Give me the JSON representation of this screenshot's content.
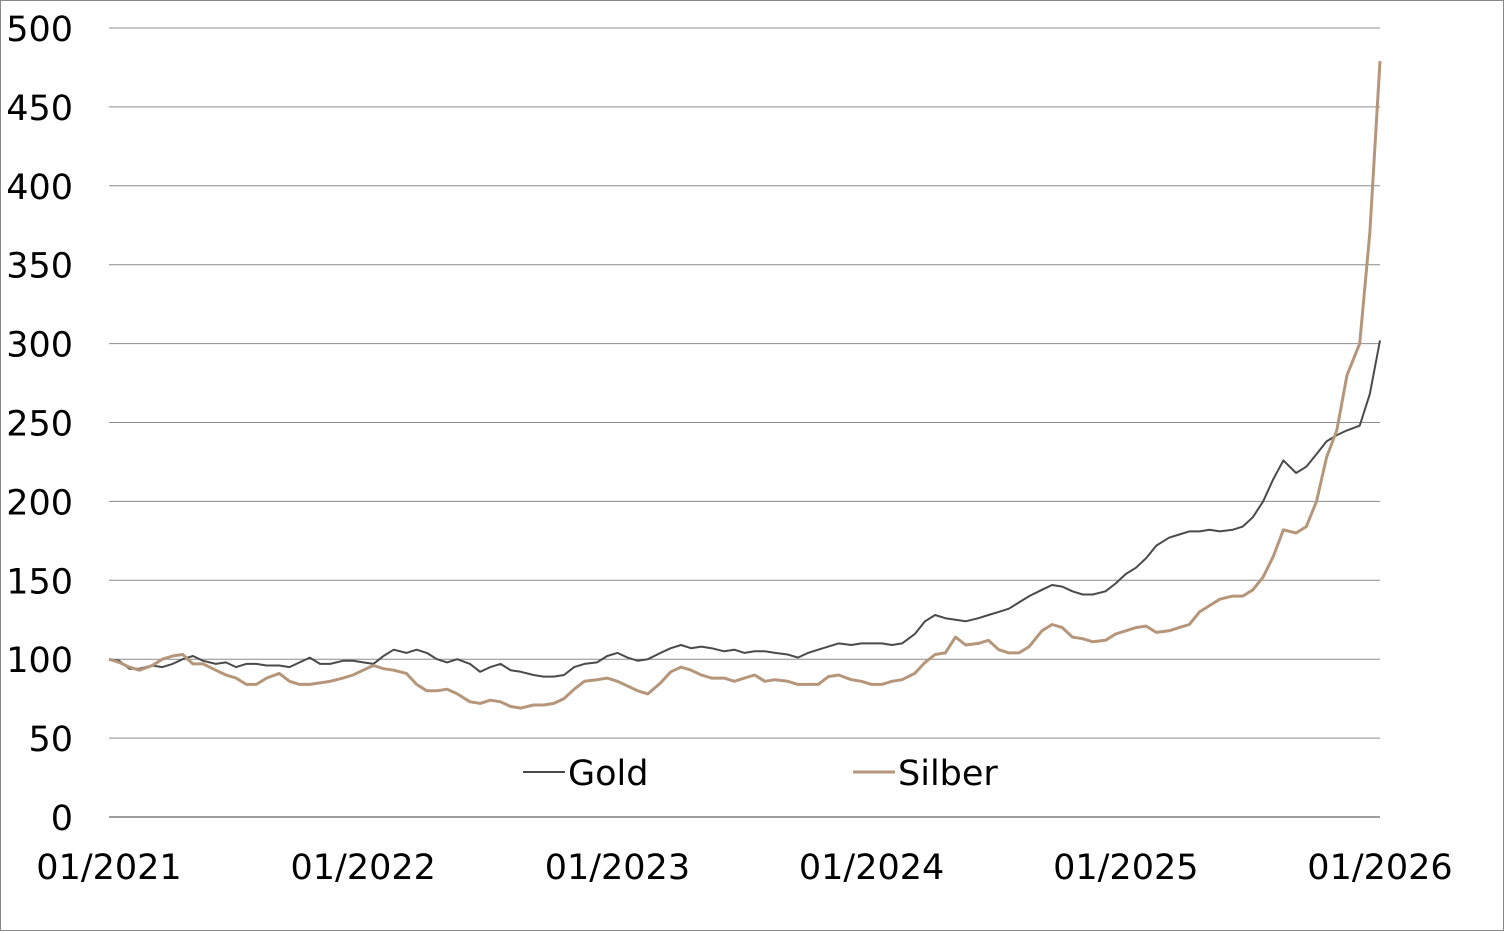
{
  "chart_data": {
    "type": "line",
    "title": "",
    "xlabel": "",
    "ylabel": "",
    "ylim": [
      0,
      500
    ],
    "y_ticks": [
      "0",
      "50",
      "100",
      "150",
      "200",
      "250",
      "300",
      "350",
      "400",
      "450",
      "500"
    ],
    "x_ticks": [
      "01/2021",
      "01/2022",
      "01/2023",
      "01/2024",
      "01/2025",
      "01/2026"
    ],
    "xlim": [
      2021.0,
      2026.0
    ],
    "grid": "horizontal",
    "legend": "bottom-center",
    "series": [
      {
        "name": "Gold",
        "color": "#4a4a4a",
        "points": [
          [
            2021.0,
            100
          ],
          [
            2021.04,
            99
          ],
          [
            2021.08,
            94
          ],
          [
            2021.12,
            94
          ],
          [
            2021.17,
            96
          ],
          [
            2021.21,
            95
          ],
          [
            2021.25,
            97
          ],
          [
            2021.29,
            100
          ],
          [
            2021.33,
            102
          ],
          [
            2021.37,
            99
          ],
          [
            2021.42,
            97
          ],
          [
            2021.46,
            98
          ],
          [
            2021.5,
            95
          ],
          [
            2021.54,
            97
          ],
          [
            2021.58,
            97
          ],
          [
            2021.62,
            96
          ],
          [
            2021.67,
            96
          ],
          [
            2021.71,
            95
          ],
          [
            2021.75,
            98
          ],
          [
            2021.79,
            101
          ],
          [
            2021.83,
            97
          ],
          [
            2021.87,
            97
          ],
          [
            2021.92,
            99
          ],
          [
            2021.96,
            99
          ],
          [
            2022.0,
            98
          ],
          [
            2022.04,
            97
          ],
          [
            2022.08,
            102
          ],
          [
            2022.12,
            106
          ],
          [
            2022.17,
            104
          ],
          [
            2022.21,
            106
          ],
          [
            2022.25,
            104
          ],
          [
            2022.29,
            100
          ],
          [
            2022.33,
            98
          ],
          [
            2022.37,
            100
          ],
          [
            2022.42,
            97
          ],
          [
            2022.46,
            92
          ],
          [
            2022.5,
            95
          ],
          [
            2022.54,
            97
          ],
          [
            2022.58,
            93
          ],
          [
            2022.62,
            92
          ],
          [
            2022.67,
            90
          ],
          [
            2022.71,
            89
          ],
          [
            2022.75,
            89
          ],
          [
            2022.79,
            90
          ],
          [
            2022.83,
            95
          ],
          [
            2022.87,
            97
          ],
          [
            2022.92,
            98
          ],
          [
            2022.96,
            102
          ],
          [
            2023.0,
            104
          ],
          [
            2023.04,
            101
          ],
          [
            2023.08,
            99
          ],
          [
            2023.12,
            100
          ],
          [
            2023.17,
            104
          ],
          [
            2023.21,
            107
          ],
          [
            2023.25,
            109
          ],
          [
            2023.29,
            107
          ],
          [
            2023.33,
            108
          ],
          [
            2023.37,
            107
          ],
          [
            2023.42,
            105
          ],
          [
            2023.46,
            106
          ],
          [
            2023.5,
            104
          ],
          [
            2023.54,
            105
          ],
          [
            2023.58,
            105
          ],
          [
            2023.62,
            104
          ],
          [
            2023.67,
            103
          ],
          [
            2023.71,
            101
          ],
          [
            2023.75,
            104
          ],
          [
            2023.79,
            106
          ],
          [
            2023.83,
            108
          ],
          [
            2023.87,
            110
          ],
          [
            2023.92,
            109
          ],
          [
            2023.96,
            110
          ],
          [
            2024.0,
            110
          ],
          [
            2024.04,
            110
          ],
          [
            2024.08,
            109
          ],
          [
            2024.12,
            110
          ],
          [
            2024.17,
            116
          ],
          [
            2024.21,
            124
          ],
          [
            2024.25,
            128
          ],
          [
            2024.29,
            126
          ],
          [
            2024.33,
            125
          ],
          [
            2024.37,
            124
          ],
          [
            2024.42,
            126
          ],
          [
            2024.46,
            128
          ],
          [
            2024.5,
            130
          ],
          [
            2024.54,
            132
          ],
          [
            2024.58,
            136
          ],
          [
            2024.62,
            140
          ],
          [
            2024.67,
            144
          ],
          [
            2024.71,
            147
          ],
          [
            2024.75,
            146
          ],
          [
            2024.79,
            143
          ],
          [
            2024.83,
            141
          ],
          [
            2024.87,
            141
          ],
          [
            2024.92,
            143
          ],
          [
            2024.96,
            148
          ],
          [
            2025.0,
            154
          ],
          [
            2025.04,
            158
          ],
          [
            2025.08,
            164
          ],
          [
            2025.12,
            172
          ],
          [
            2025.17,
            177
          ],
          [
            2025.21,
            179
          ],
          [
            2025.25,
            181
          ],
          [
            2025.29,
            181
          ],
          [
            2025.33,
            182
          ],
          [
            2025.37,
            181
          ],
          [
            2025.42,
            182
          ],
          [
            2025.46,
            184
          ],
          [
            2025.5,
            190
          ],
          [
            2025.54,
            200
          ],
          [
            2025.58,
            214
          ],
          [
            2025.62,
            226
          ],
          [
            2025.67,
            218
          ],
          [
            2025.71,
            222
          ],
          [
            2025.75,
            230
          ],
          [
            2025.79,
            238
          ],
          [
            2025.83,
            242
          ],
          [
            2025.87,
            245
          ],
          [
            2025.92,
            248
          ],
          [
            2025.96,
            268
          ],
          [
            2026.0,
            302
          ]
        ]
      },
      {
        "name": "Silber",
        "color": "#b5967a",
        "points": [
          [
            2021.0,
            100
          ],
          [
            2021.04,
            98
          ],
          [
            2021.08,
            95
          ],
          [
            2021.12,
            93
          ],
          [
            2021.17,
            96
          ],
          [
            2021.21,
            100
          ],
          [
            2021.25,
            102
          ],
          [
            2021.29,
            103
          ],
          [
            2021.33,
            97
          ],
          [
            2021.37,
            97
          ],
          [
            2021.42,
            93
          ],
          [
            2021.46,
            90
          ],
          [
            2021.5,
            88
          ],
          [
            2021.54,
            84
          ],
          [
            2021.58,
            84
          ],
          [
            2021.62,
            88
          ],
          [
            2021.67,
            91
          ],
          [
            2021.71,
            86
          ],
          [
            2021.75,
            84
          ],
          [
            2021.79,
            84
          ],
          [
            2021.83,
            85
          ],
          [
            2021.87,
            86
          ],
          [
            2021.92,
            88
          ],
          [
            2021.96,
            90
          ],
          [
            2022.0,
            93
          ],
          [
            2022.04,
            96
          ],
          [
            2022.08,
            94
          ],
          [
            2022.12,
            93
          ],
          [
            2022.17,
            91
          ],
          [
            2022.21,
            84
          ],
          [
            2022.25,
            80
          ],
          [
            2022.29,
            80
          ],
          [
            2022.33,
            81
          ],
          [
            2022.37,
            78
          ],
          [
            2022.42,
            73
          ],
          [
            2022.46,
            72
          ],
          [
            2022.5,
            74
          ],
          [
            2022.54,
            73
          ],
          [
            2022.58,
            70
          ],
          [
            2022.62,
            69
          ],
          [
            2022.67,
            71
          ],
          [
            2022.71,
            71
          ],
          [
            2022.75,
            72
          ],
          [
            2022.79,
            75
          ],
          [
            2022.83,
            81
          ],
          [
            2022.87,
            86
          ],
          [
            2022.92,
            87
          ],
          [
            2022.96,
            88
          ],
          [
            2023.0,
            86
          ],
          [
            2023.04,
            83
          ],
          [
            2023.08,
            80
          ],
          [
            2023.12,
            78
          ],
          [
            2023.17,
            85
          ],
          [
            2023.21,
            92
          ],
          [
            2023.25,
            95
          ],
          [
            2023.29,
            93
          ],
          [
            2023.33,
            90
          ],
          [
            2023.37,
            88
          ],
          [
            2023.42,
            88
          ],
          [
            2023.46,
            86
          ],
          [
            2023.5,
            88
          ],
          [
            2023.54,
            90
          ],
          [
            2023.58,
            86
          ],
          [
            2023.62,
            87
          ],
          [
            2023.67,
            86
          ],
          [
            2023.71,
            84
          ],
          [
            2023.75,
            84
          ],
          [
            2023.79,
            84
          ],
          [
            2023.83,
            89
          ],
          [
            2023.87,
            90
          ],
          [
            2023.92,
            87
          ],
          [
            2023.96,
            86
          ],
          [
            2024.0,
            84
          ],
          [
            2024.04,
            84
          ],
          [
            2024.08,
            86
          ],
          [
            2024.12,
            87
          ],
          [
            2024.17,
            91
          ],
          [
            2024.21,
            98
          ],
          [
            2024.25,
            103
          ],
          [
            2024.29,
            104
          ],
          [
            2024.33,
            114
          ],
          [
            2024.37,
            109
          ],
          [
            2024.42,
            110
          ],
          [
            2024.46,
            112
          ],
          [
            2024.5,
            106
          ],
          [
            2024.54,
            104
          ],
          [
            2024.58,
            104
          ],
          [
            2024.62,
            108
          ],
          [
            2024.67,
            118
          ],
          [
            2024.71,
            122
          ],
          [
            2024.75,
            120
          ],
          [
            2024.79,
            114
          ],
          [
            2024.83,
            113
          ],
          [
            2024.87,
            111
          ],
          [
            2024.92,
            112
          ],
          [
            2024.96,
            116
          ],
          [
            2025.0,
            118
          ],
          [
            2025.04,
            120
          ],
          [
            2025.08,
            121
          ],
          [
            2025.12,
            117
          ],
          [
            2025.17,
            118
          ],
          [
            2025.21,
            120
          ],
          [
            2025.25,
            122
          ],
          [
            2025.29,
            130
          ],
          [
            2025.33,
            134
          ],
          [
            2025.37,
            138
          ],
          [
            2025.42,
            140
          ],
          [
            2025.46,
            140
          ],
          [
            2025.5,
            144
          ],
          [
            2025.54,
            152
          ],
          [
            2025.58,
            165
          ],
          [
            2025.62,
            182
          ],
          [
            2025.67,
            180
          ],
          [
            2025.71,
            184
          ],
          [
            2025.75,
            200
          ],
          [
            2025.79,
            228
          ],
          [
            2025.83,
            245
          ],
          [
            2025.87,
            280
          ],
          [
            2025.92,
            300
          ],
          [
            2025.96,
            370
          ],
          [
            2026.0,
            479
          ]
        ]
      }
    ]
  }
}
